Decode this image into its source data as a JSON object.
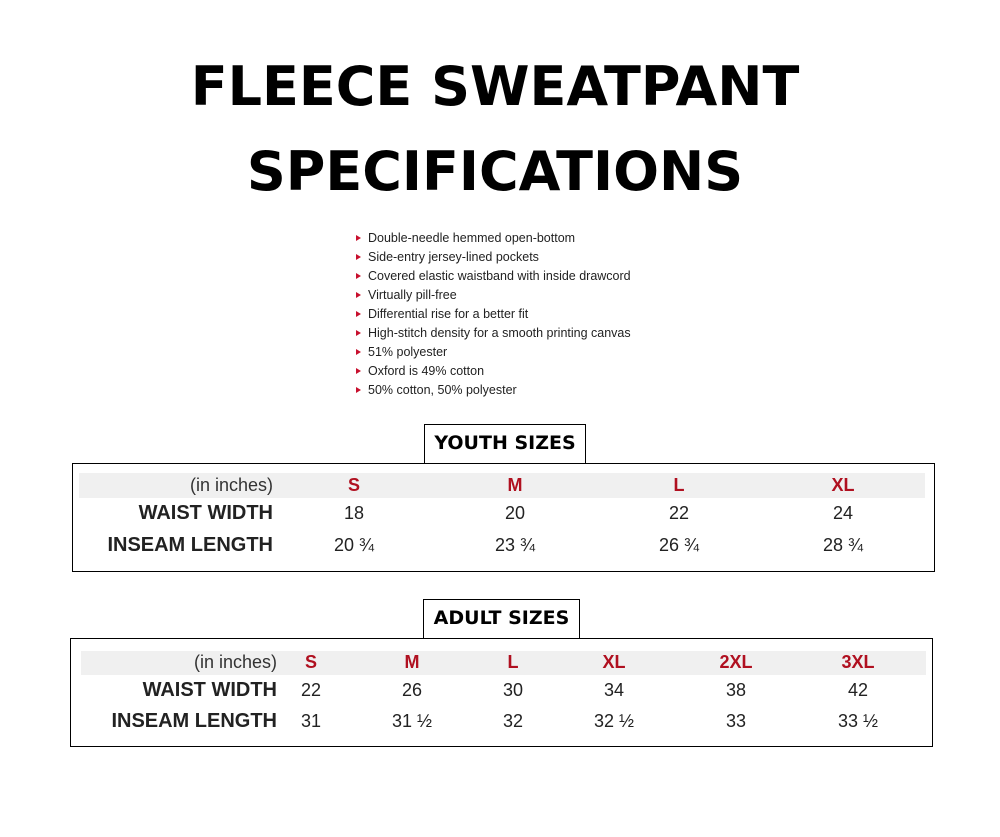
{
  "title_lines": [
    "FLEECE SWEATPANT",
    "SPECIFICATIONS"
  ],
  "features": [
    "Double-needle hemmed open-bottom",
    "Side-entry jersey-lined pockets",
    "Covered elastic waistband with inside drawcord",
    "Virtually pill-free",
    "Differential rise for a better fit",
    "High-stitch density for a smooth printing canvas",
    "51% polyester",
    "Oxford is 49% cotton",
    "50% cotton, 50% polyester"
  ],
  "colors": {
    "size_header": "#b01020",
    "bullet": "#c8102e",
    "header_band": "#f0f0f0"
  },
  "youth": {
    "heading": "YOUTH SIZES",
    "unit": "(in inches)",
    "sizes": [
      "S",
      "M",
      "L",
      "XL"
    ],
    "rows": [
      {
        "label": "WAIST WIDTH",
        "values": [
          "18",
          "20",
          "22",
          "24"
        ]
      },
      {
        "label": "INSEAM LENGTH",
        "values": [
          "20 ¾",
          "23 ¾",
          "26 ¾",
          "28 ¾"
        ]
      }
    ]
  },
  "adult": {
    "heading": "ADULT SIZES",
    "unit": "(in inches)",
    "sizes": [
      "S",
      "M",
      "L",
      "XL",
      "2XL",
      "3XL"
    ],
    "rows": [
      {
        "label": "WAIST WIDTH",
        "values": [
          "22",
          "26",
          "30",
          "34",
          "38",
          "42"
        ]
      },
      {
        "label": "INSEAM LENGTH",
        "values": [
          "31",
          "31 ½",
          "32",
          "32 ½",
          "33",
          "33 ½"
        ]
      }
    ]
  }
}
